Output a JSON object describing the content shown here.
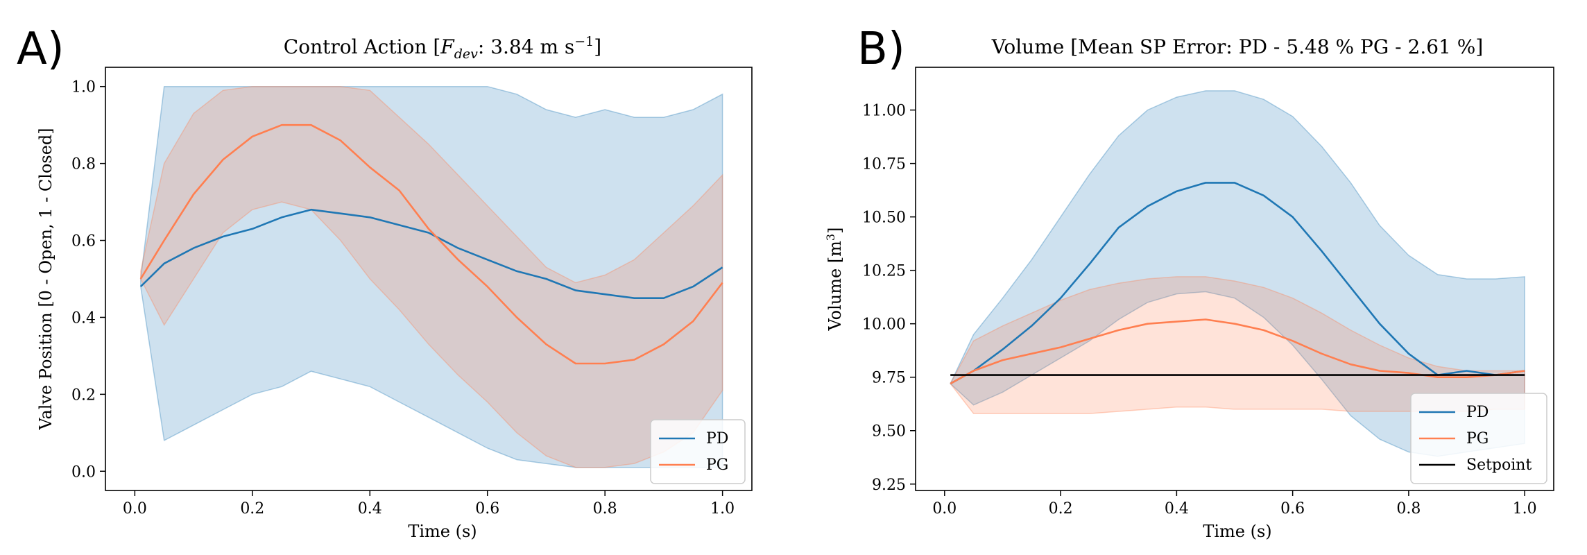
{
  "chart_data": [
    {
      "panel": "A)",
      "type": "line",
      "title_prefix": "Control Action [",
      "title_math_var": "F",
      "title_math_sub": "dev",
      "title_suffix": ": 3.84 m s",
      "title_sup": "−1",
      "title_close": "]",
      "xlabel": "Time (s)",
      "ylabel": "Valve Position [0 - Open, 1 - Closed]",
      "xlim": [
        -0.05,
        1.05
      ],
      "ylim": [
        -0.05,
        1.05
      ],
      "xticks": [
        0.0,
        0.2,
        0.4,
        0.6,
        0.8,
        1.0
      ],
      "xtick_labels": [
        "0.0",
        "0.2",
        "0.4",
        "0.6",
        "0.8",
        "1.0"
      ],
      "yticks": [
        0.0,
        0.2,
        0.4,
        0.6,
        0.8,
        1.0
      ],
      "ytick_labels": [
        "0.0",
        "0.2",
        "0.4",
        "0.6",
        "0.8",
        "1.0"
      ],
      "legend_position": "bottom-right",
      "x": [
        0.01,
        0.05,
        0.1,
        0.15,
        0.2,
        0.25,
        0.3,
        0.35,
        0.4,
        0.45,
        0.5,
        0.55,
        0.6,
        0.65,
        0.7,
        0.75,
        0.8,
        0.85,
        0.9,
        0.95,
        1.0
      ],
      "series": [
        {
          "name": "PD",
          "color": "#1f77b4",
          "values": [
            0.48,
            0.54,
            0.58,
            0.61,
            0.63,
            0.66,
            0.68,
            0.67,
            0.66,
            0.64,
            0.62,
            0.58,
            0.55,
            0.52,
            0.5,
            0.47,
            0.46,
            0.45,
            0.45,
            0.48,
            0.53
          ],
          "band_upper": [
            0.5,
            1.0,
            1.0,
            1.0,
            1.0,
            1.0,
            1.0,
            1.0,
            1.0,
            1.0,
            1.0,
            1.0,
            1.0,
            0.98,
            0.94,
            0.92,
            0.94,
            0.92,
            0.92,
            0.94,
            0.98
          ],
          "band_lower": [
            0.48,
            0.08,
            0.12,
            0.16,
            0.2,
            0.22,
            0.26,
            0.24,
            0.22,
            0.18,
            0.14,
            0.1,
            0.06,
            0.03,
            0.02,
            0.01,
            0.01,
            0.01,
            0.01,
            0.01,
            0.01
          ]
        },
        {
          "name": "PG",
          "color": "#ff7f50",
          "values": [
            0.5,
            0.6,
            0.72,
            0.81,
            0.87,
            0.9,
            0.9,
            0.86,
            0.79,
            0.73,
            0.63,
            0.55,
            0.48,
            0.4,
            0.33,
            0.28,
            0.28,
            0.29,
            0.33,
            0.39,
            0.49
          ],
          "band_upper": [
            0.52,
            0.8,
            0.93,
            0.99,
            1.0,
            1.0,
            1.0,
            1.0,
            0.99,
            0.92,
            0.85,
            0.77,
            0.69,
            0.61,
            0.53,
            0.49,
            0.51,
            0.55,
            0.62,
            0.69,
            0.77
          ],
          "band_lower": [
            0.5,
            0.38,
            0.5,
            0.62,
            0.68,
            0.7,
            0.68,
            0.6,
            0.5,
            0.42,
            0.33,
            0.25,
            0.18,
            0.1,
            0.04,
            0.01,
            0.01,
            0.02,
            0.05,
            0.1,
            0.21
          ]
        }
      ]
    },
    {
      "panel": "B)",
      "type": "line",
      "title": "Volume [Mean SP Error: PD - 5.48 %  PG - 2.61 %]",
      "xlabel": "Time (s)",
      "ylabel_prefix": "Volume [m",
      "ylabel_sup": "3",
      "ylabel_suffix": "]",
      "xlim": [
        -0.05,
        1.05
      ],
      "ylim": [
        9.22,
        11.2
      ],
      "xticks": [
        0.0,
        0.2,
        0.4,
        0.6,
        0.8,
        1.0
      ],
      "xtick_labels": [
        "0.0",
        "0.2",
        "0.4",
        "0.6",
        "0.8",
        "1.0"
      ],
      "yticks": [
        9.25,
        9.5,
        9.75,
        10.0,
        10.25,
        10.5,
        10.75,
        11.0
      ],
      "ytick_labels": [
        "9.25",
        "9.50",
        "9.75",
        "10.00",
        "10.25",
        "10.50",
        "10.75",
        "11.00"
      ],
      "legend_position": "bottom-right",
      "x": [
        0.01,
        0.05,
        0.1,
        0.15,
        0.2,
        0.25,
        0.3,
        0.35,
        0.4,
        0.45,
        0.5,
        0.55,
        0.6,
        0.65,
        0.7,
        0.75,
        0.8,
        0.85,
        0.9,
        0.95,
        1.0
      ],
      "series": [
        {
          "name": "PD",
          "color": "#1f77b4",
          "values": [
            9.72,
            9.78,
            9.88,
            9.99,
            10.12,
            10.28,
            10.45,
            10.55,
            10.62,
            10.66,
            10.66,
            10.6,
            10.5,
            10.34,
            10.17,
            10.0,
            9.86,
            9.76,
            9.78,
            9.76,
            9.78
          ],
          "band_upper": [
            9.72,
            9.95,
            10.12,
            10.3,
            10.5,
            10.7,
            10.88,
            11.0,
            11.06,
            11.09,
            11.09,
            11.05,
            10.97,
            10.83,
            10.66,
            10.46,
            10.32,
            10.23,
            10.21,
            10.21,
            10.22
          ],
          "band_lower": [
            9.72,
            9.62,
            9.68,
            9.76,
            9.84,
            9.92,
            10.02,
            10.1,
            10.14,
            10.15,
            10.12,
            10.03,
            9.9,
            9.74,
            9.57,
            9.46,
            9.4,
            9.38,
            9.4,
            9.42,
            9.44
          ]
        },
        {
          "name": "PG",
          "color": "#ff7f50",
          "values": [
            9.72,
            9.78,
            9.83,
            9.86,
            9.89,
            9.93,
            9.97,
            10.0,
            10.01,
            10.02,
            10.0,
            9.97,
            9.92,
            9.86,
            9.81,
            9.78,
            9.77,
            9.75,
            9.75,
            9.76,
            9.78
          ],
          "band_upper": [
            9.72,
            9.92,
            9.99,
            10.05,
            10.11,
            10.16,
            10.19,
            10.21,
            10.22,
            10.22,
            10.2,
            10.17,
            10.12,
            10.05,
            9.97,
            9.9,
            9.84,
            9.8,
            9.78,
            9.78,
            9.78
          ],
          "band_lower": [
            9.72,
            9.58,
            9.58,
            9.58,
            9.58,
            9.58,
            9.59,
            9.6,
            9.61,
            9.61,
            9.6,
            9.6,
            9.6,
            9.6,
            9.59,
            9.59,
            9.59,
            9.59,
            9.59,
            9.6,
            9.6
          ]
        },
        {
          "name": "Setpoint",
          "color": "#000000",
          "values": [
            9.76,
            9.76,
            9.76,
            9.76,
            9.76,
            9.76,
            9.76,
            9.76,
            9.76,
            9.76,
            9.76,
            9.76,
            9.76,
            9.76,
            9.76,
            9.76,
            9.76,
            9.76,
            9.76,
            9.76,
            9.76
          ]
        }
      ]
    }
  ]
}
